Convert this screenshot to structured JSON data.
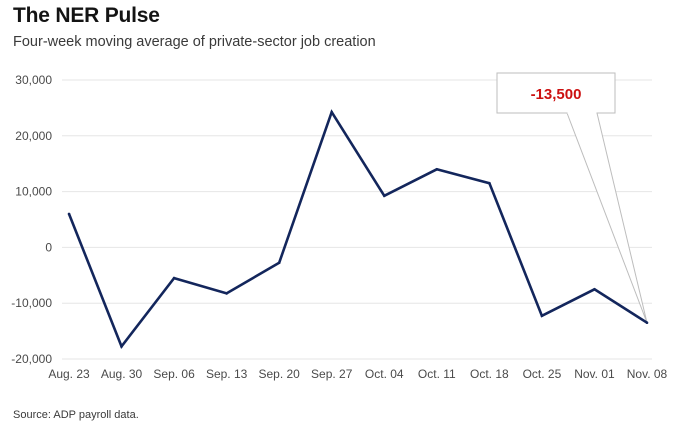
{
  "header": {
    "title": "The NER Pulse",
    "subtitle": "Four-week moving average of private-sector job creation"
  },
  "footer": {
    "source": "Source: ADP payroll data."
  },
  "colors": {
    "line": "#13265c",
    "grid": "#e6e6e6",
    "callout_text": "#cc1111",
    "callout_border": "#bdbdbd"
  },
  "chart_data": {
    "type": "line",
    "title": "The NER Pulse",
    "subtitle": "Four-week moving average of private-sector job creation",
    "xlabel": "",
    "ylabel": "",
    "categories": [
      "Aug. 23",
      "Aug. 30",
      "Sep. 06",
      "Sep. 13",
      "Sep. 20",
      "Sep. 27",
      "Oct. 04",
      "Oct. 11",
      "Oct. 18",
      "Oct. 25",
      "Nov. 01",
      "Nov. 08"
    ],
    "series": [
      {
        "name": "Four-week moving average",
        "values": [
          6000,
          -17750,
          -5500,
          -8250,
          -2750,
          24250,
          9250,
          14000,
          11500,
          -12250,
          -7500,
          -13500
        ]
      }
    ],
    "ylim": [
      -20000,
      30000
    ],
    "yticks": [
      30000,
      20000,
      10000,
      0,
      -10000,
      -20000
    ],
    "ytick_labels": [
      "30,000",
      "20,000",
      "10,000",
      "0",
      "-10,000",
      "-20,000"
    ],
    "grid": true,
    "annotation": {
      "text": "-13,500",
      "category": "Nov. 08",
      "value": -13500
    }
  }
}
